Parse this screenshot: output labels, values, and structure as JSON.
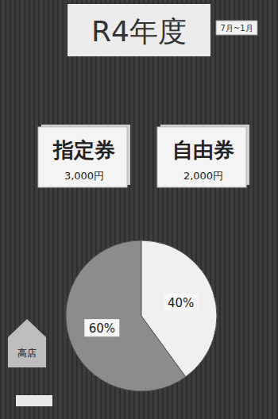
{
  "chart_data": {
    "type": "pie",
    "title": "R4年度",
    "values": [
      60,
      40
    ],
    "value_labels": [
      "60%",
      "40%"
    ],
    "data_labels": true,
    "colors": [
      "#8c8c8c",
      "#f0f0f0"
    ]
  },
  "poster": {
    "period": "7月~1月",
    "tickets": [
      {
        "label": "指定券",
        "price": "3,000円"
      },
      {
        "label": "自由券",
        "price": "2,000円"
      }
    ],
    "sign": "高店"
  }
}
